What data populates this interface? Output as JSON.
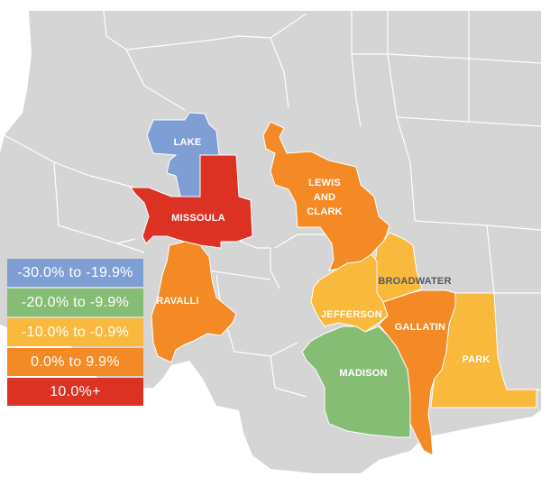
{
  "colors": {
    "background_land": "#d5d5d5",
    "borders": "#ffffff",
    "blue": "#7f9fd4",
    "green": "#86bd75",
    "yellow": "#f8b93c",
    "orange": "#f48a25",
    "red": "#dc3224"
  },
  "counties": [
    {
      "name": "LAKE",
      "bin": "-30.0% to -19.9%",
      "color": "#7f9fd4"
    },
    {
      "name": "MISSOULA",
      "bin": "10.0%+",
      "color": "#dc3224"
    },
    {
      "name": "RAVALLI",
      "bin": "0.0% to 9.9%",
      "color": "#f48a25"
    },
    {
      "name_line1": "LEWIS",
      "name_line2": "AND",
      "name_line3": "CLARK",
      "bin": "0.0% to 9.9%",
      "color": "#f48a25"
    },
    {
      "name": "BROADWATER",
      "bin": "-10.0% to -0.9%",
      "color": "#f8b93c"
    },
    {
      "name": "JEFFERSON",
      "bin": "-10.0% to -0.9%",
      "color": "#f8b93c"
    },
    {
      "name": "GALLATIN",
      "bin": "0.0% to 9.9%",
      "color": "#f48a25"
    },
    {
      "name": "PARK",
      "bin": "-10.0% to -0.9%",
      "color": "#f8b93c"
    },
    {
      "name": "MADISON",
      "bin": "-20.0% to -9.9%",
      "color": "#86bd75"
    }
  ],
  "legend": [
    {
      "label": "-30.0% to -19.9%",
      "color": "#7f9fd4"
    },
    {
      "label": "-20.0% to -9.9%",
      "color": "#86bd75"
    },
    {
      "label": "-10.0% to -0.9%",
      "color": "#f8b93c"
    },
    {
      "label": "0.0% to 9.9%",
      "color": "#f48a25"
    },
    {
      "label": "10.0%+",
      "color": "#dc3224"
    }
  ]
}
